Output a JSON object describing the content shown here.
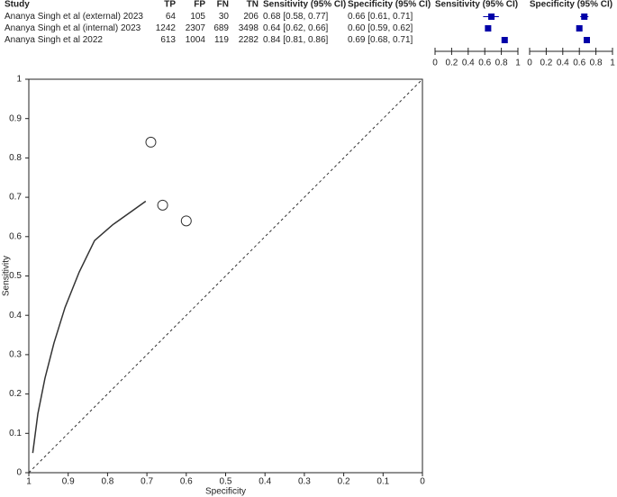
{
  "table": {
    "columns": [
      "Study",
      "TP",
      "FP",
      "FN",
      "TN",
      "Sensitivity (95% CI)",
      "Specificity (95% CI)"
    ],
    "rows": [
      [
        "Ananya Singh et al (external) 2023",
        64,
        105,
        30,
        206,
        "0.68 [0.58, 0.77]",
        "0.66 [0.61, 0.71]"
      ],
      [
        "Ananya Singh et al (internal) 2023",
        1242,
        2307,
        689,
        3498,
        "0.64 [0.62, 0.66]",
        "0.60 [0.59, 0.62]"
      ],
      [
        "Ananya Singh et al 2022",
        613,
        1004,
        119,
        2282,
        "0.84 [0.81, 0.86]",
        "0.69 [0.68, 0.71]"
      ]
    ]
  },
  "chart_data": [
    {
      "type": "forest",
      "title": "Sensitivity (95% CI)",
      "values": [
        0.68,
        0.64,
        0.84
      ],
      "lower": [
        0.58,
        0.62,
        0.81
      ],
      "upper": [
        0.77,
        0.66,
        0.86
      ],
      "xlim": [
        0,
        1
      ],
      "xticks": [
        0,
        0.2,
        0.4,
        0.6,
        0.8,
        1
      ],
      "color": "#0000a8"
    },
    {
      "type": "forest",
      "title": "Specificity (95% CI)",
      "values": [
        0.66,
        0.6,
        0.69
      ],
      "lower": [
        0.61,
        0.59,
        0.68
      ],
      "upper": [
        0.71,
        0.62,
        0.71
      ],
      "xlim": [
        0,
        1
      ],
      "xticks": [
        0,
        0.2,
        0.4,
        0.6,
        0.8,
        1
      ],
      "color": "#0000a8"
    },
    {
      "type": "sroc",
      "xlabel": "Specificity",
      "ylabel": "Sensitivity",
      "xlim": [
        1,
        0
      ],
      "ylim": [
        0,
        1
      ],
      "xticks": [
        1,
        0.9,
        0.8,
        0.7,
        0.6,
        0.5,
        0.4,
        0.3,
        0.2,
        0.1,
        0
      ],
      "yticks": [
        0,
        0.1,
        0.2,
        0.3,
        0.4,
        0.5,
        0.6,
        0.7,
        0.8,
        0.9,
        1
      ],
      "points": {
        "x": [
          0.66,
          0.6,
          0.69
        ],
        "y": [
          0.68,
          0.64,
          0.84
        ]
      },
      "curve": {
        "x": [
          0.99,
          0.977,
          0.959,
          0.936,
          0.908,
          0.872,
          0.833,
          0.787,
          0.745,
          0.703
        ],
        "y": [
          0.05,
          0.15,
          0.24,
          0.33,
          0.42,
          0.51,
          0.59,
          0.63,
          0.66,
          0.69
        ]
      },
      "color": "#333333"
    }
  ]
}
